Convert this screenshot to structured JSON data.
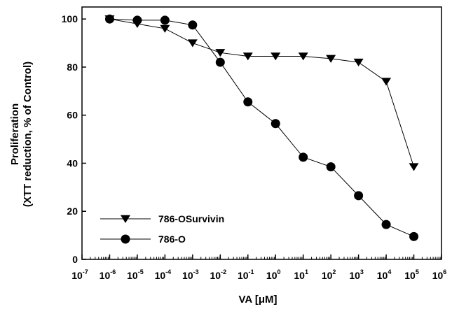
{
  "chart_data": {
    "type": "line",
    "xlabel": "VA [μM]",
    "ylabel_line1": "Proliferation",
    "ylabel_line2": "(XTT reduction, % of Control)",
    "x_scale": "log10",
    "xlim": [
      1e-07,
      1000000.0
    ],
    "ylim": [
      0,
      105
    ],
    "x_ticks": [
      {
        "base": "10",
        "exp": "-7"
      },
      {
        "base": "10",
        "exp": "-6"
      },
      {
        "base": "10",
        "exp": "-5"
      },
      {
        "base": "10",
        "exp": "-4"
      },
      {
        "base": "10",
        "exp": "-3"
      },
      {
        "base": "10",
        "exp": "-2"
      },
      {
        "base": "10",
        "exp": "-1"
      },
      {
        "base": "10",
        "exp": "0"
      },
      {
        "base": "10",
        "exp": "1"
      },
      {
        "base": "10",
        "exp": "2"
      },
      {
        "base": "10",
        "exp": "3"
      },
      {
        "base": "10",
        "exp": "4"
      },
      {
        "base": "10",
        "exp": "5"
      },
      {
        "base": "10",
        "exp": "6"
      }
    ],
    "y_ticks": [
      "0",
      "20",
      "40",
      "60",
      "80",
      "100"
    ],
    "grid": false,
    "legend_position": "bottom-left",
    "series": [
      {
        "name": "786-OSurvivin",
        "marker": "triangle-down",
        "color": "#000000",
        "x": [
          1e-06,
          1e-05,
          0.0001,
          0.001,
          0.01,
          0.1,
          1,
          10,
          100,
          1000,
          10000,
          100000
        ],
        "y": [
          100,
          98,
          96,
          90,
          86,
          84.5,
          84.5,
          84.5,
          83.5,
          82,
          74,
          38.5
        ]
      },
      {
        "name": "786-O",
        "marker": "circle",
        "color": "#000000",
        "x": [
          1e-06,
          1e-05,
          0.0001,
          0.001,
          0.01,
          0.1,
          1,
          10,
          100,
          1000,
          10000,
          100000
        ],
        "y": [
          100,
          99.5,
          99.5,
          97.5,
          82,
          65.5,
          56.5,
          42.5,
          38.5,
          26.5,
          14.5,
          9.5
        ]
      }
    ]
  }
}
